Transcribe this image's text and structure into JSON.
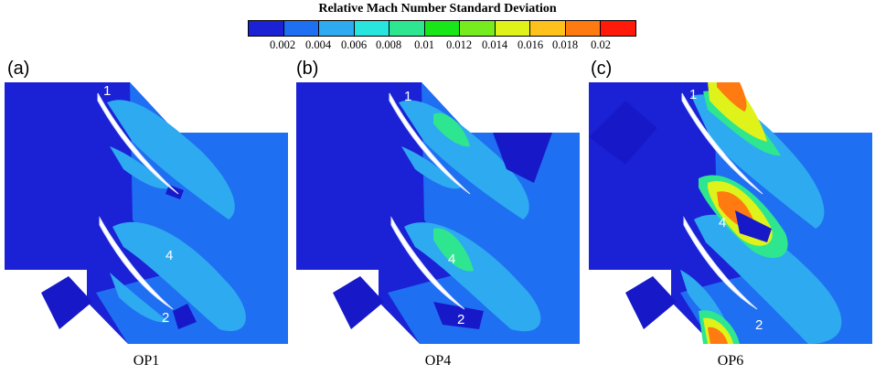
{
  "colorbar": {
    "title": "Relative Mach Number Standard Deviation",
    "ticks": [
      "0.002",
      "0.004",
      "0.006",
      "0.008",
      "0.01",
      "0.012",
      "0.014",
      "0.016",
      "0.018",
      "0.02"
    ],
    "colors": [
      "#1b22d6",
      "#1f6ff2",
      "#2eaaf0",
      "#28e6de",
      "#2ee68f",
      "#19e619",
      "#76ec1e",
      "#dff21a",
      "#ffc21c",
      "#ff7a10",
      "#ff1a0a"
    ]
  },
  "panels": [
    {
      "letter": "(a)",
      "label": "OP1",
      "markers": [
        "1",
        "4",
        "2"
      ]
    },
    {
      "letter": "(b)",
      "label": "OP4",
      "markers": [
        "1",
        "4",
        "2"
      ]
    },
    {
      "letter": "(c)",
      "label": "OP6",
      "markers": [
        "1",
        "4",
        "2"
      ]
    }
  ]
}
